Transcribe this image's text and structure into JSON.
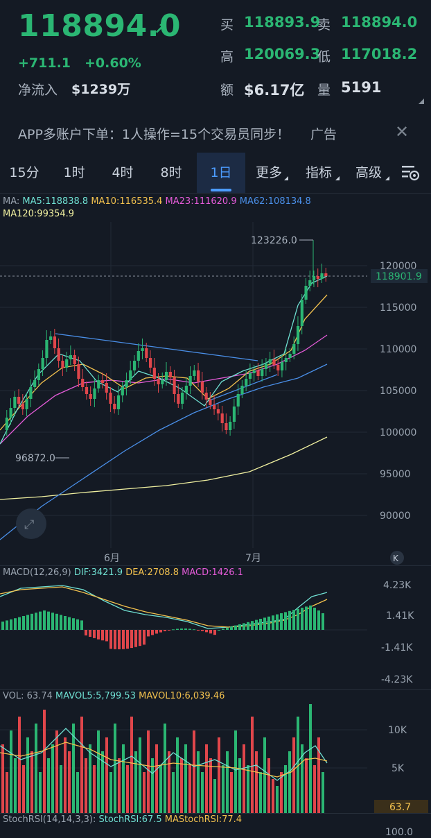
{
  "header": {
    "price": "118894.0",
    "change_abs": "+711.1",
    "change_pct": "+0.60%",
    "netflow_label": "净流入",
    "netflow_value": "$1239万",
    "buy_label": "买",
    "buy_value": "118893.9",
    "sell_label": "卖",
    "sell_value": "118894.0",
    "high_label": "高",
    "high_value": "120069.3",
    "low_label": "低",
    "low_value": "117018.2",
    "amount_label": "额",
    "amount_value": "$6.17亿",
    "volume_label": "量",
    "volume_value": "5191"
  },
  "ad": {
    "text": "APP多账户下单：1人操作=15个交易员同步！",
    "tag": "广告"
  },
  "tabs": [
    "15分",
    "1时",
    "4时",
    "8时",
    "1日",
    "更多",
    "指标",
    "高级"
  ],
  "active_tab": "1日",
  "ma_legend": {
    "prefix": "MA:",
    "ma5": "MA5:118838.8",
    "ma10": "MA10:116535.4",
    "ma23": "MA23:111620.9",
    "ma62": "MA62:108134.8",
    "ma120": "MA120:99354.9"
  },
  "main_chart": {
    "y_ticks": [
      "120000",
      "115000",
      "110000",
      "105000",
      "100000",
      "95000",
      "90000"
    ],
    "current_price_tag": "118901.9",
    "high_annotation": "123226.0",
    "low_annotation": "96872.0",
    "x_ticks": [
      "6月",
      "7月"
    ]
  },
  "macd": {
    "label": "MACD(12,26,9)",
    "dif": "DIF:3421.9",
    "dea": "DEA:2708.8",
    "macd": "MACD:1426.1",
    "y_ticks": [
      "4.23K",
      "1.41K",
      "-1.41K",
      "-4.23K"
    ]
  },
  "vol": {
    "label": "VOL: 63.74",
    "mavol5": "MAVOL5:5,799.53",
    "mavol10": "MAVOL10:6,039.46",
    "y_ticks": [
      "10K",
      "5K"
    ],
    "current_tag": "63.7"
  },
  "stochrsi": {
    "label": "StochRSI(14,14,3,3):",
    "value": "StochRSI:67.5",
    "ma": "MAStochRSI:77.4",
    "y_tick": "100.0"
  },
  "colors": {
    "up": "#2bb673",
    "down": "#e0464b",
    "ma5": "#6fe0d2",
    "ma10": "#f2c14e",
    "ma23": "#e45bd8",
    "ma62": "#4a8fe8",
    "ma120": "#f0f0a0",
    "dif": "#6fe0d2",
    "dea": "#f2c14e",
    "macd": "#e45bd8",
    "active_tab": "#4c9cff"
  }
}
